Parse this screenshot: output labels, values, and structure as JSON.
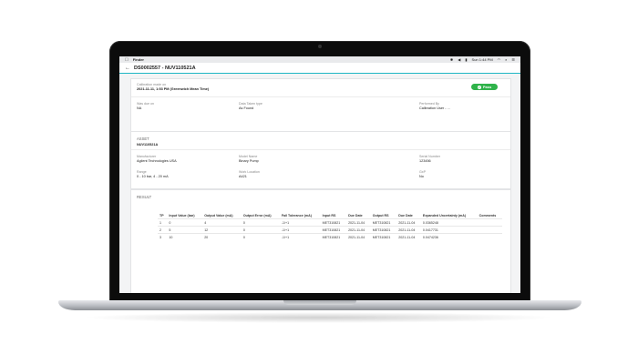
{
  "menubar": {
    "app_name": "Finder",
    "datetime": "Sun 1:44 PM",
    "apple_icon": "apple-logo-icon",
    "icons": [
      "bluetooth-icon",
      "volume-icon",
      "battery-icon",
      "wifi-icon",
      "search-icon",
      "control-center-icon"
    ]
  },
  "header": {
    "back_icon": "arrow-left-icon",
    "title": "DS0002557 - NUV110521A"
  },
  "summary": {
    "made_label": "Calibration made on",
    "made_value": "2021-11-11, 1:53 PM (Greenwich Mean Time)",
    "status": "Pass",
    "was_due_label": "Was due on",
    "was_due_value": "NA",
    "data_taken_label": "Data Taken type",
    "data_taken_value": "As Found",
    "performed_by_label": "Performed By",
    "performed_by_value": "Calibration User - ..."
  },
  "asset": {
    "section_label": "ASSET",
    "id": "NUV110521A",
    "manufacturer_label": "Manufacturer",
    "manufacturer_value": "Agilent Technologies USA",
    "model_label": "Model Name",
    "model_value": "Binary Pump",
    "serial_label": "Serial Number",
    "serial_value": "123456",
    "range_label": "Range",
    "range_value": "0 - 10 bar, 4 - 20 mA",
    "location_label": "Work Location",
    "location_value": "A421",
    "gxp_label": "GxP",
    "gxp_value": "No"
  },
  "result": {
    "section_label": "RESULT",
    "columns": [
      "TP",
      "Input Value (bar)",
      "Output Value (mA)",
      "Output Error (mA)",
      "Fail Tolerance (mA)",
      "Input RS",
      "Due Date",
      "Output RS",
      "Due Date",
      "Expanded Uncertainty (mA)",
      "Comments"
    ],
    "rows": [
      [
        "1",
        "0",
        "4",
        "0",
        "-1/+1",
        "MET310821",
        "2021-11-04",
        "MET310821",
        "2021-11-04",
        "0.0365248",
        ""
      ],
      [
        "2",
        "5",
        "12",
        "0",
        "-1/+1",
        "MET310821",
        "2021-11-04",
        "MET310821",
        "2021-11-04",
        "0.0417731",
        ""
      ],
      [
        "3",
        "10",
        "20",
        "0",
        "-1/+1",
        "MET310821",
        "2021-11-04",
        "MET310821",
        "2021-11-04",
        "0.0474236",
        ""
      ]
    ]
  },
  "colors": {
    "accent": "#1fb6c4",
    "pass": "#2fb34a"
  }
}
